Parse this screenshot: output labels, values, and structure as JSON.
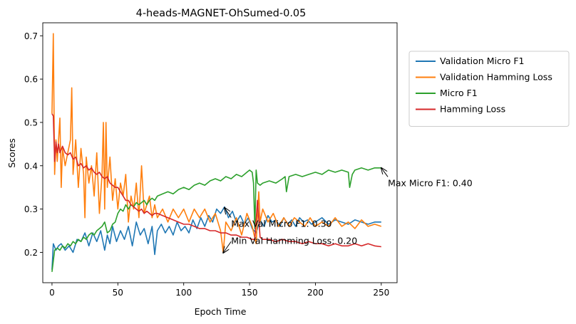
{
  "chart_data": {
    "type": "line",
    "title": "4-heads-MAGNET-OhSumed-0.05",
    "xlabel": "Epoch Time",
    "ylabel": "Scores",
    "xlim": [
      -7,
      262
    ],
    "ylim": [
      0.13,
      0.73
    ],
    "xticks": [
      0,
      50,
      100,
      150,
      200,
      250
    ],
    "yticks": [
      0.2,
      0.3,
      0.4,
      0.5,
      0.6,
      0.7
    ],
    "grid": false,
    "legend_position": "outside-right",
    "series": [
      {
        "name": "Validation Micro F1",
        "color": "#1f77b4",
        "x": [
          0,
          1,
          3,
          5,
          7,
          10,
          13,
          16,
          19,
          22,
          25,
          28,
          31,
          34,
          37,
          40,
          42,
          44,
          46,
          49,
          52,
          55,
          58,
          61,
          64,
          67,
          70,
          73,
          76,
          78,
          80,
          83,
          86,
          89,
          92,
          95,
          98,
          101,
          104,
          107,
          110,
          113,
          116,
          119,
          122,
          125,
          128,
          131,
          134,
          137,
          140,
          143,
          146,
          149,
          152,
          155,
          158,
          161,
          164,
          167,
          170,
          173,
          176,
          179,
          182,
          185,
          188,
          191,
          194,
          197,
          200,
          205,
          210,
          215,
          220,
          225,
          230,
          235,
          240,
          245,
          250
        ],
        "y": [
          0.16,
          0.22,
          0.205,
          0.215,
          0.22,
          0.205,
          0.215,
          0.2,
          0.23,
          0.225,
          0.245,
          0.215,
          0.245,
          0.225,
          0.25,
          0.205,
          0.24,
          0.22,
          0.26,
          0.225,
          0.25,
          0.23,
          0.26,
          0.215,
          0.27,
          0.24,
          0.255,
          0.22,
          0.26,
          0.195,
          0.25,
          0.265,
          0.245,
          0.26,
          0.24,
          0.27,
          0.25,
          0.26,
          0.245,
          0.275,
          0.255,
          0.28,
          0.26,
          0.285,
          0.27,
          0.3,
          0.29,
          0.305,
          0.28,
          0.295,
          0.27,
          0.285,
          0.265,
          0.28,
          0.255,
          0.245,
          0.275,
          0.26,
          0.285,
          0.27,
          0.275,
          0.26,
          0.28,
          0.265,
          0.275,
          0.26,
          0.28,
          0.27,
          0.275,
          0.265,
          0.27,
          0.28,
          0.265,
          0.275,
          0.27,
          0.265,
          0.275,
          0.27,
          0.265,
          0.27,
          0.27
        ]
      },
      {
        "name": "Validation Hamming Loss",
        "color": "#ff7f0e",
        "x": [
          0,
          1,
          2,
          3,
          4,
          5,
          6,
          7,
          8,
          10,
          12,
          14,
          15,
          16,
          18,
          20,
          22,
          24,
          25,
          26,
          28,
          30,
          32,
          34,
          36,
          38,
          39,
          40,
          41,
          42,
          44,
          46,
          48,
          50,
          52,
          54,
          56,
          58,
          60,
          62,
          64,
          66,
          68,
          70,
          72,
          74,
          76,
          78,
          80,
          84,
          88,
          92,
          96,
          100,
          104,
          108,
          112,
          116,
          120,
          124,
          128,
          130,
          132,
          136,
          140,
          144,
          148,
          152,
          155,
          157,
          158,
          160,
          164,
          168,
          172,
          176,
          180,
          184,
          188,
          192,
          196,
          200,
          205,
          210,
          215,
          220,
          225,
          230,
          235,
          240,
          245,
          250
        ],
        "y": [
          0.52,
          0.705,
          0.38,
          0.46,
          0.41,
          0.46,
          0.51,
          0.35,
          0.44,
          0.4,
          0.43,
          0.46,
          0.58,
          0.38,
          0.46,
          0.35,
          0.44,
          0.38,
          0.28,
          0.42,
          0.36,
          0.4,
          0.33,
          0.43,
          0.29,
          0.38,
          0.5,
          0.3,
          0.5,
          0.35,
          0.42,
          0.32,
          0.37,
          0.3,
          0.36,
          0.33,
          0.38,
          0.27,
          0.33,
          0.3,
          0.36,
          0.28,
          0.4,
          0.29,
          0.31,
          0.33,
          0.28,
          0.31,
          0.28,
          0.3,
          0.27,
          0.3,
          0.28,
          0.3,
          0.27,
          0.3,
          0.28,
          0.3,
          0.27,
          0.29,
          0.25,
          0.2,
          0.27,
          0.25,
          0.28,
          0.24,
          0.29,
          0.26,
          0.22,
          0.34,
          0.27,
          0.3,
          0.27,
          0.29,
          0.26,
          0.28,
          0.26,
          0.28,
          0.27,
          0.26,
          0.28,
          0.26,
          0.27,
          0.26,
          0.28,
          0.26,
          0.27,
          0.255,
          0.275,
          0.26,
          0.265,
          0.26
        ]
      },
      {
        "name": "Micro F1",
        "color": "#2ca02c",
        "x": [
          0,
          2,
          4,
          6,
          8,
          10,
          12,
          14,
          16,
          18,
          20,
          22,
          24,
          26,
          28,
          30,
          32,
          34,
          36,
          38,
          40,
          42,
          44,
          46,
          48,
          50,
          52,
          54,
          56,
          58,
          60,
          62,
          64,
          66,
          68,
          70,
          72,
          74,
          76,
          78,
          80,
          84,
          88,
          92,
          96,
          100,
          104,
          108,
          112,
          116,
          120,
          124,
          128,
          132,
          136,
          140,
          144,
          148,
          150,
          152,
          153,
          154,
          155,
          156,
          158,
          160,
          165,
          170,
          175,
          177,
          178,
          180,
          185,
          190,
          195,
          200,
          205,
          210,
          215,
          220,
          225,
          226,
          228,
          230,
          235,
          240,
          245,
          250
        ],
        "y": [
          0.155,
          0.205,
          0.21,
          0.205,
          0.215,
          0.21,
          0.22,
          0.215,
          0.225,
          0.22,
          0.23,
          0.225,
          0.235,
          0.23,
          0.24,
          0.245,
          0.24,
          0.25,
          0.255,
          0.26,
          0.27,
          0.245,
          0.25,
          0.265,
          0.27,
          0.29,
          0.3,
          0.295,
          0.31,
          0.3,
          0.31,
          0.305,
          0.315,
          0.31,
          0.315,
          0.32,
          0.31,
          0.32,
          0.325,
          0.32,
          0.33,
          0.335,
          0.34,
          0.335,
          0.345,
          0.35,
          0.345,
          0.355,
          0.36,
          0.355,
          0.365,
          0.37,
          0.365,
          0.375,
          0.37,
          0.38,
          0.375,
          0.385,
          0.39,
          0.385,
          0.36,
          0.255,
          0.39,
          0.36,
          0.355,
          0.36,
          0.365,
          0.36,
          0.37,
          0.375,
          0.34,
          0.375,
          0.38,
          0.375,
          0.38,
          0.385,
          0.38,
          0.39,
          0.385,
          0.39,
          0.385,
          0.35,
          0.38,
          0.39,
          0.395,
          0.39,
          0.395,
          0.395
        ]
      },
      {
        "name": "Hamming Loss",
        "color": "#d62728",
        "x": [
          0,
          1,
          2,
          3,
          4,
          5,
          6,
          8,
          10,
          12,
          14,
          16,
          18,
          20,
          22,
          24,
          26,
          28,
          30,
          32,
          34,
          36,
          38,
          40,
          42,
          44,
          46,
          48,
          50,
          52,
          54,
          56,
          58,
          60,
          62,
          64,
          66,
          68,
          70,
          72,
          74,
          76,
          78,
          80,
          84,
          88,
          92,
          96,
          100,
          104,
          108,
          112,
          116,
          120,
          124,
          128,
          132,
          136,
          140,
          144,
          148,
          152,
          154,
          156,
          158,
          160,
          165,
          170,
          175,
          180,
          185,
          190,
          195,
          200,
          205,
          210,
          215,
          220,
          225,
          230,
          235,
          240,
          245,
          250
        ],
        "y": [
          0.52,
          0.515,
          0.41,
          0.455,
          0.43,
          0.45,
          0.43,
          0.445,
          0.43,
          0.425,
          0.43,
          0.415,
          0.42,
          0.4,
          0.405,
          0.395,
          0.4,
          0.39,
          0.395,
          0.385,
          0.38,
          0.385,
          0.375,
          0.37,
          0.375,
          0.36,
          0.355,
          0.35,
          0.35,
          0.34,
          0.33,
          0.32,
          0.32,
          0.31,
          0.305,
          0.3,
          0.295,
          0.3,
          0.29,
          0.295,
          0.29,
          0.285,
          0.29,
          0.29,
          0.285,
          0.28,
          0.275,
          0.27,
          0.265,
          0.265,
          0.26,
          0.255,
          0.255,
          0.25,
          0.25,
          0.245,
          0.245,
          0.24,
          0.24,
          0.235,
          0.235,
          0.23,
          0.23,
          0.32,
          0.235,
          0.23,
          0.23,
          0.225,
          0.23,
          0.225,
          0.225,
          0.22,
          0.225,
          0.22,
          0.22,
          0.215,
          0.22,
          0.215,
          0.215,
          0.22,
          0.215,
          0.22,
          0.215,
          0.213
        ]
      }
    ],
    "annotations": [
      {
        "text": "Max Micro F1: 0.40",
        "point": [
          250,
          0.395
        ],
        "text_at": [
          255,
          0.353
        ]
      },
      {
        "text": "Max Val Micro F1: 0.30",
        "point": [
          131,
          0.303
        ],
        "text_at": [
          136,
          0.259
        ]
      },
      {
        "text": "Min Val Hamming Loss: 0.20",
        "point": [
          130,
          0.199
        ],
        "text_at": [
          136,
          0.22
        ]
      }
    ]
  }
}
